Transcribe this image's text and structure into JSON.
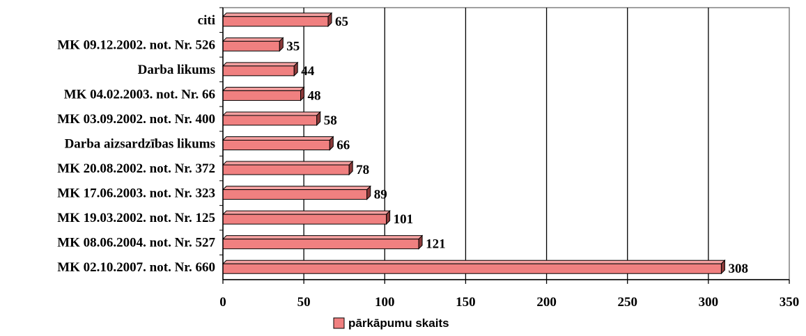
{
  "chart_data": {
    "type": "bar",
    "orientation": "horizontal",
    "categories": [
      "citi",
      "MK 09.12.2002. not. Nr. 526",
      "Darba likums",
      "MK 04.02.2003. not. Nr. 66",
      "MK 03.09.2002. not. Nr. 400",
      "Darba aizsardzības likums",
      "MK 20.08.2002. not. Nr. 372",
      "MK 17.06.2003. not. Nr. 323",
      "MK 19.03.2002. not. Nr. 125",
      "MK 08.06.2004. not. Nr. 527",
      "MK 02.10.2007. not. Nr. 660"
    ],
    "series": [
      {
        "name": "pārkāpumu skaits",
        "values": [
          65,
          35,
          44,
          48,
          58,
          66,
          78,
          89,
          101,
          121,
          308
        ]
      }
    ],
    "value_labels": [
      "65",
      "35",
      "44",
      "48",
      "58",
      "66",
      "78",
      "89",
      "101",
      "121",
      "308"
    ],
    "x_ticks": [
      "0",
      "50",
      "100",
      "150",
      "200",
      "250",
      "300",
      "350"
    ],
    "xlim": [
      0,
      350
    ],
    "grid": "vertical",
    "legend_position": "bottom-center",
    "colors": {
      "bar_fill": "#f08080",
      "bar_side": "#8b3a3a",
      "bar_outline": "#000000",
      "grid": "#000000"
    }
  }
}
